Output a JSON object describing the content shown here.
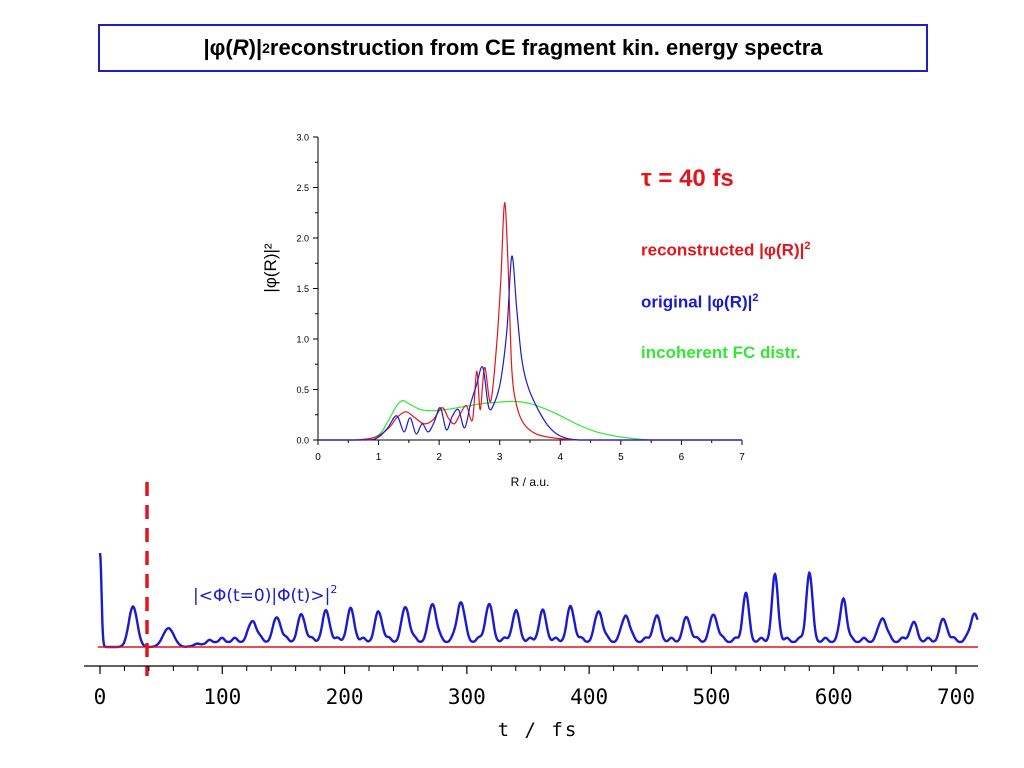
{
  "title": {
    "prefix": "|",
    "phi": "φ",
    "open": "(",
    "var": "R",
    "close": ")|",
    "sup": "2",
    "rest": " reconstruction from CE fragment kin. energy spectra"
  },
  "colors": {
    "red": "#e3141b",
    "blue": "#1a1ad0",
    "green": "#33e633",
    "title_border": "#1f1fbf"
  },
  "legend": {
    "tau": "τ = 40 fs",
    "reconstructed": {
      "text": "reconstructed |φ(R)|",
      "sup": "2"
    },
    "original": {
      "text": "original |φ(R)|",
      "sup": "2"
    },
    "incoherent": {
      "text": "incoherent FC distr."
    }
  },
  "chart_data": [
    {
      "type": "line",
      "xlabel": "R / a.u.",
      "ylabel": "|φ(R)|²",
      "xlim": [
        0,
        7
      ],
      "ylim": [
        0,
        3.0
      ],
      "xticks": [
        "0",
        "1",
        "2",
        "3",
        "4",
        "5",
        "6",
        "7"
      ],
      "yticks": [
        "0.0",
        "0.5",
        "1.0",
        "1.5",
        "2.0",
        "2.5",
        "3.0"
      ],
      "grid": false,
      "series": [
        {
          "name": "reconstructed |φ(R)|²",
          "color": "#e3141b",
          "x": [
            0.0,
            0.6,
            0.9,
            1.05,
            1.2,
            1.3,
            1.45,
            1.6,
            1.75,
            1.9,
            2.05,
            2.15,
            2.25,
            2.35,
            2.45,
            2.55,
            2.62,
            2.68,
            2.75,
            2.85,
            2.95,
            3.02,
            3.08,
            3.14,
            3.2,
            3.28,
            3.4,
            3.6,
            3.9,
            4.3,
            5.0,
            7.0
          ],
          "y": [
            0.0,
            0.0,
            0.02,
            0.06,
            0.14,
            0.22,
            0.28,
            0.22,
            0.16,
            0.2,
            0.32,
            0.22,
            0.16,
            0.26,
            0.34,
            0.2,
            0.68,
            0.3,
            0.72,
            0.38,
            0.95,
            1.6,
            2.35,
            1.7,
            0.7,
            0.34,
            0.16,
            0.06,
            0.02,
            0.0,
            0.0,
            0.0
          ]
        },
        {
          "name": "original |φ(R)|²",
          "color": "#1a1ad0",
          "x": [
            0.0,
            0.8,
            1.0,
            1.15,
            1.3,
            1.42,
            1.52,
            1.62,
            1.72,
            1.82,
            1.92,
            2.02,
            2.12,
            2.22,
            2.32,
            2.42,
            2.52,
            2.62,
            2.72,
            2.82,
            2.92,
            3.02,
            3.12,
            3.2,
            3.28,
            3.36,
            3.45,
            3.6,
            3.8,
            4.0,
            4.3,
            5.0,
            7.0
          ],
          "y": [
            0.0,
            0.0,
            0.03,
            0.12,
            0.24,
            0.08,
            0.22,
            0.06,
            0.16,
            0.08,
            0.18,
            0.32,
            0.1,
            0.24,
            0.3,
            0.12,
            0.36,
            0.55,
            0.72,
            0.32,
            0.38,
            0.6,
            1.1,
            1.82,
            1.3,
            0.82,
            0.56,
            0.34,
            0.14,
            0.04,
            0.0,
            0.0,
            0.0
          ]
        },
        {
          "name": "incoherent FC distr.",
          "color": "#33e633",
          "x": [
            0.0,
            0.7,
            1.0,
            1.15,
            1.3,
            1.4,
            1.5,
            1.7,
            1.9,
            2.1,
            2.3,
            2.5,
            2.7,
            2.9,
            3.1,
            3.3,
            3.5,
            3.7,
            3.9,
            4.1,
            4.3,
            4.6,
            5.0,
            5.5,
            6.0,
            7.0
          ],
          "y": [
            0.0,
            0.0,
            0.05,
            0.18,
            0.34,
            0.39,
            0.36,
            0.3,
            0.29,
            0.3,
            0.32,
            0.34,
            0.36,
            0.37,
            0.38,
            0.38,
            0.36,
            0.32,
            0.27,
            0.21,
            0.15,
            0.08,
            0.03,
            0.0,
            0.0,
            0.0
          ]
        }
      ]
    },
    {
      "type": "line",
      "xlabel": "t / fs",
      "annotation": "|<Φ(t=0)|Φ(t)>|",
      "annotation_sup": "2",
      "xlim": [
        0,
        720
      ],
      "xticks": [
        "0",
        "100",
        "200",
        "300",
        "400",
        "500",
        "600",
        "700"
      ],
      "grid": false,
      "marker_line": {
        "t": 40,
        "color": "#e3141b",
        "style": "dashed"
      },
      "baseline": {
        "color": "#e3141b"
      },
      "series": [
        {
          "name": "|<Φ(t=0)|Φ(t)>|²",
          "color": "#1a1ad0",
          "peaks": [
            {
              "t": 0,
              "h": 1.0,
              "w": 1.2
            },
            {
              "t": 27,
              "h": 0.43,
              "w": 3.5
            },
            {
              "t": 56,
              "h": 0.2,
              "w": 4.5
            },
            {
              "t": 125,
              "h": 0.22,
              "w": 3
            },
            {
              "t": 145,
              "h": 0.25,
              "w": 3
            },
            {
              "t": 165,
              "h": 0.27,
              "w": 3
            },
            {
              "t": 185,
              "h": 0.3,
              "w": 3
            },
            {
              "t": 205,
              "h": 0.32,
              "w": 3
            },
            {
              "t": 228,
              "h": 0.3,
              "w": 3
            },
            {
              "t": 250,
              "h": 0.36,
              "w": 3
            },
            {
              "t": 272,
              "h": 0.4,
              "w": 3
            },
            {
              "t": 295,
              "h": 0.42,
              "w": 3
            },
            {
              "t": 318,
              "h": 0.38,
              "w": 3
            },
            {
              "t": 340,
              "h": 0.3,
              "w": 3
            },
            {
              "t": 362,
              "h": 0.3,
              "w": 3
            },
            {
              "t": 385,
              "h": 0.35,
              "w": 3
            },
            {
              "t": 408,
              "h": 0.32,
              "w": 3
            },
            {
              "t": 430,
              "h": 0.28,
              "w": 3
            },
            {
              "t": 455,
              "h": 0.25,
              "w": 3
            },
            {
              "t": 480,
              "h": 0.24,
              "w": 3
            },
            {
              "t": 502,
              "h": 0.28,
              "w": 3
            },
            {
              "t": 528,
              "h": 0.5,
              "w": 2.5
            },
            {
              "t": 552,
              "h": 0.68,
              "w": 2.5
            },
            {
              "t": 580,
              "h": 0.72,
              "w": 2.5
            },
            {
              "t": 608,
              "h": 0.46,
              "w": 2.5
            },
            {
              "t": 640,
              "h": 0.25,
              "w": 3
            },
            {
              "t": 665,
              "h": 0.18,
              "w": 3
            },
            {
              "t": 690,
              "h": 0.22,
              "w": 3
            },
            {
              "t": 715,
              "h": 0.3,
              "w": 3
            }
          ],
          "background_oscillation": {
            "from": 70,
            "to": 720,
            "amplitude": 0.14,
            "period": 10.5
          }
        }
      ]
    }
  ]
}
